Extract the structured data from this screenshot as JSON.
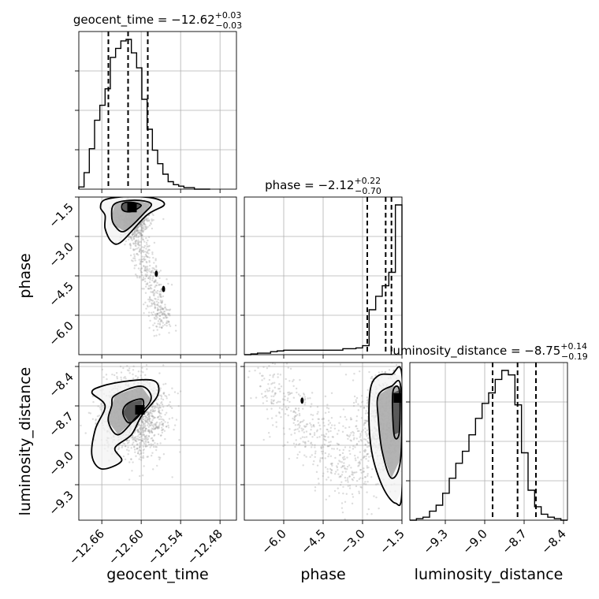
{
  "chart_data": {
    "type": "corner",
    "parameters": [
      {
        "name": "geocent_time",
        "xlabel": "geocent_time",
        "ylabel": "",
        "title_main": "geocent_time = −12.62",
        "title_plus": "+0.03",
        "title_minus": "−0.03",
        "median": -12.62,
        "q_lower": -12.65,
        "q_upper": -12.59,
        "range": [
          -12.695,
          -12.455
        ],
        "ticks": [
          -12.66,
          -12.6,
          -12.54,
          -12.48
        ],
        "tick_labels": [
          "−12.66",
          "−12.60",
          "−12.54",
          "−12.48"
        ]
      },
      {
        "name": "phase",
        "xlabel": "phase",
        "ylabel": "phase",
        "title_main": "phase = −2.12",
        "title_plus": "+0.22",
        "title_minus": "−0.70",
        "median": -2.12,
        "q_lower": -2.82,
        "q_upper": -1.9,
        "range": [
          -7.5,
          -1.5
        ],
        "ticks": [
          -6.0,
          -4.5,
          -3.0,
          -1.5
        ],
        "tick_labels": [
          "−6.0",
          "−4.5",
          "−3.0",
          "−1.5"
        ]
      },
      {
        "name": "luminosity_distance",
        "xlabel": "luminosity_distance",
        "ylabel": "luminosity_distance",
        "title_main": "luminosity_distance = −8.75",
        "title_plus": "+0.14",
        "title_minus": "−0.19",
        "median": -8.75,
        "q_lower": -8.94,
        "q_upper": -8.61,
        "range": [
          -9.57,
          -8.37
        ],
        "ticks": [
          -9.3,
          -9.0,
          -8.7,
          -8.4
        ],
        "tick_labels": [
          "−9.3",
          "−9.0",
          "−8.7",
          "−8.4"
        ]
      }
    ],
    "histograms": [
      {
        "param": "geocent_time",
        "bin_edges": [
          -12.695,
          -12.687,
          -12.679,
          -12.671,
          -12.663,
          -12.655,
          -12.647,
          -12.639,
          -12.631,
          -12.623,
          -12.615,
          -12.607,
          -12.599,
          -12.591,
          -12.583,
          -12.575,
          -12.567,
          -12.559,
          -12.551,
          -12.543,
          -12.535,
          -12.527,
          -12.519,
          -12.511,
          -12.503,
          -12.495
        ],
        "counts": [
          0.015,
          0.11,
          0.27,
          0.46,
          0.56,
          0.67,
          0.88,
          0.94,
          0.99,
          1.0,
          0.91,
          0.81,
          0.6,
          0.4,
          0.26,
          0.17,
          0.1,
          0.05,
          0.03,
          0.02,
          0.01,
          0.01,
          0.0,
          0.0,
          0.0
        ]
      },
      {
        "param": "phase",
        "bin_edges": [
          -7.5,
          -7.25,
          -7.0,
          -6.75,
          -6.5,
          -6.25,
          -6.0,
          -5.75,
          -5.5,
          -5.25,
          -5.0,
          -4.75,
          -4.5,
          -4.25,
          -4.0,
          -3.75,
          -3.5,
          -3.25,
          -3.0,
          -2.75,
          -2.5,
          -2.25,
          -2.0,
          -1.75,
          -1.5
        ],
        "counts": [
          0.0,
          0.005,
          0.01,
          0.01,
          0.02,
          0.025,
          0.03,
          0.03,
          0.03,
          0.03,
          0.03,
          0.03,
          0.03,
          0.03,
          0.03,
          0.04,
          0.04,
          0.045,
          0.06,
          0.3,
          0.39,
          0.46,
          0.55,
          1.0
        ]
      },
      {
        "param": "luminosity_distance",
        "bin_edges": [
          -9.57,
          -9.52,
          -9.47,
          -9.42,
          -9.37,
          -9.32,
          -9.27,
          -9.22,
          -9.17,
          -9.12,
          -9.07,
          -9.02,
          -8.97,
          -8.92,
          -8.87,
          -8.82,
          -8.77,
          -8.72,
          -8.67,
          -8.62,
          -8.57,
          -8.52,
          -8.47,
          -8.42,
          -8.37
        ],
        "counts": [
          0.0,
          0.01,
          0.02,
          0.06,
          0.1,
          0.18,
          0.28,
          0.38,
          0.46,
          0.57,
          0.68,
          0.78,
          0.85,
          0.94,
          1.0,
          0.97,
          0.77,
          0.45,
          0.2,
          0.09,
          0.04,
          0.02,
          0.01,
          0.0
        ]
      }
    ],
    "pairs": [
      {
        "x": "geocent_time",
        "y": "phase",
        "samples": {
          "count": 1200,
          "center": [
            -12.612,
            -2.3
          ],
          "slope": -35,
          "spread_x": 0.012,
          "spread_y": 0.35,
          "tail_x": [
            -12.61,
            -12.565
          ],
          "tail_y": [
            -2.6,
            -6.4
          ]
        },
        "peak": [
          -12.614,
          -1.9
        ],
        "contours": [
          [
            [
              -12.655,
              -2.2
            ],
            [
              -12.662,
              -1.9
            ],
            [
              -12.655,
              -1.6
            ],
            [
              -12.62,
              -1.48
            ],
            [
              -12.58,
              -1.55
            ],
            [
              -12.565,
              -1.8
            ],
            [
              -12.592,
              -2.2
            ],
            [
              -12.63,
              -3.2
            ],
            [
              -12.645,
              -3.2
            ],
            [
              -12.655,
              -2.7
            ]
          ],
          [
            [
              -12.645,
              -2.2
            ],
            [
              -12.64,
              -1.75
            ],
            [
              -12.61,
              -1.62
            ],
            [
              -12.585,
              -1.75
            ],
            [
              -12.595,
              -2.1
            ],
            [
              -12.625,
              -2.8
            ],
            [
              -12.64,
              -2.6
            ]
          ],
          [
            [
              -12.628,
              -1.75
            ],
            [
              -12.615,
              -1.7
            ],
            [
              -12.6,
              -1.82
            ],
            [
              -12.615,
              -2.05
            ],
            [
              -12.628,
              -2.0
            ]
          ]
        ],
        "islands": [
          [
            -12.577,
            -4.42
          ],
          [
            -12.566,
            -5.0
          ]
        ]
      },
      {
        "x": "geocent_time",
        "y": "luminosity_distance",
        "samples": {
          "count": 1300,
          "center": [
            -12.61,
            -8.78
          ],
          "spread_x": 0.024,
          "spread_y": 0.15
        },
        "peak": [
          -12.602,
          -8.73
        ],
        "contours": [
          [
            [
              -12.66,
              -8.55
            ],
            [
              -12.62,
              -8.51
            ],
            [
              -12.58,
              -8.51
            ],
            [
              -12.575,
              -8.62
            ],
            [
              -12.6,
              -8.78
            ],
            [
              -12.615,
              -8.92
            ],
            [
              -12.64,
              -9.02
            ],
            [
              -12.63,
              -9.12
            ],
            [
              -12.66,
              -9.18
            ],
            [
              -12.675,
              -9.08
            ],
            [
              -12.67,
              -8.88
            ],
            [
              -12.655,
              -8.7
            ],
            [
              -12.675,
              -8.6
            ]
          ],
          [
            [
              -12.64,
              -8.62
            ],
            [
              -12.6,
              -8.55
            ],
            [
              -12.585,
              -8.65
            ],
            [
              -12.61,
              -8.8
            ],
            [
              -12.635,
              -8.92
            ],
            [
              -12.65,
              -8.82
            ],
            [
              -12.645,
              -8.7
            ]
          ],
          [
            [
              -12.62,
              -8.68
            ],
            [
              -12.598,
              -8.65
            ],
            [
              -12.6,
              -8.75
            ],
            [
              -12.618,
              -8.83
            ],
            [
              -12.628,
              -8.75
            ]
          ]
        ]
      },
      {
        "x": "phase",
        "y": "luminosity_distance",
        "samples": {
          "count": 1300,
          "center": [
            -2.2,
            -8.85
          ],
          "spread_x": 0.5,
          "spread_y": 0.2,
          "tail_x": [
            -6.8,
            -3.0
          ],
          "tail_y": [
            -8.5,
            -9.3
          ]
        },
        "peak": [
          -1.64,
          -8.64
        ],
        "contours": [
          [
            [
              -2.7,
              -8.57
            ],
            [
              -2.4,
              -8.47
            ],
            [
              -1.9,
              -8.46
            ],
            [
              -1.5,
              -8.47
            ],
            [
              -1.5,
              -9.35
            ],
            [
              -1.75,
              -9.44
            ],
            [
              -2.2,
              -9.33
            ],
            [
              -2.6,
              -9.1
            ],
            [
              -2.75,
              -8.85
            ]
          ],
          [
            [
              -2.4,
              -8.62
            ],
            [
              -1.9,
              -8.55
            ],
            [
              -1.55,
              -8.55
            ],
            [
              -1.55,
              -9.1
            ],
            [
              -1.9,
              -9.25
            ],
            [
              -2.25,
              -9.05
            ],
            [
              -2.4,
              -8.8
            ]
          ],
          [
            [
              -1.85,
              -8.6
            ],
            [
              -1.6,
              -8.58
            ],
            [
              -1.6,
              -8.9
            ],
            [
              -1.8,
              -8.92
            ]
          ]
        ],
        "islands": [
          [
            -5.3,
            -8.66
          ]
        ]
      }
    ]
  }
}
